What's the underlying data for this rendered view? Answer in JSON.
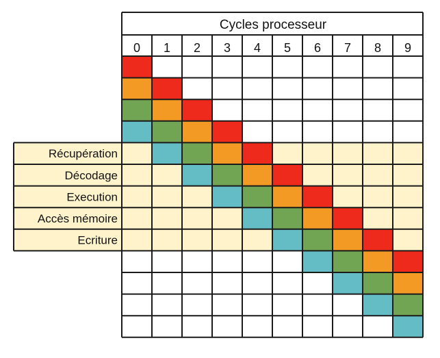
{
  "title": "Cycles processeur",
  "cycles": [
    "0",
    "1",
    "2",
    "3",
    "4",
    "5",
    "6",
    "7",
    "8",
    "9"
  ],
  "stages": [
    "Récupération",
    "Décodage",
    "Execution",
    "Accès mémoire",
    "Ecriture"
  ],
  "colors": {
    "instruction_1": "#ee2a1c",
    "instruction_2": "#f39a24",
    "instruction_3": "#71a553",
    "instruction_4": "#64bdc5",
    "stage_band": "#fff3cc",
    "empty": "#ffffff",
    "border": "#1a1a1a"
  },
  "pipeline": {
    "first_stage_row": 4,
    "total_rows": 13,
    "instructions": [
      {
        "color_key": "instruction_1",
        "start_row": 0
      },
      {
        "color_key": "instruction_2",
        "start_row": 1
      },
      {
        "color_key": "instruction_3",
        "start_row": 2
      },
      {
        "color_key": "instruction_4",
        "start_row": 3
      }
    ]
  }
}
